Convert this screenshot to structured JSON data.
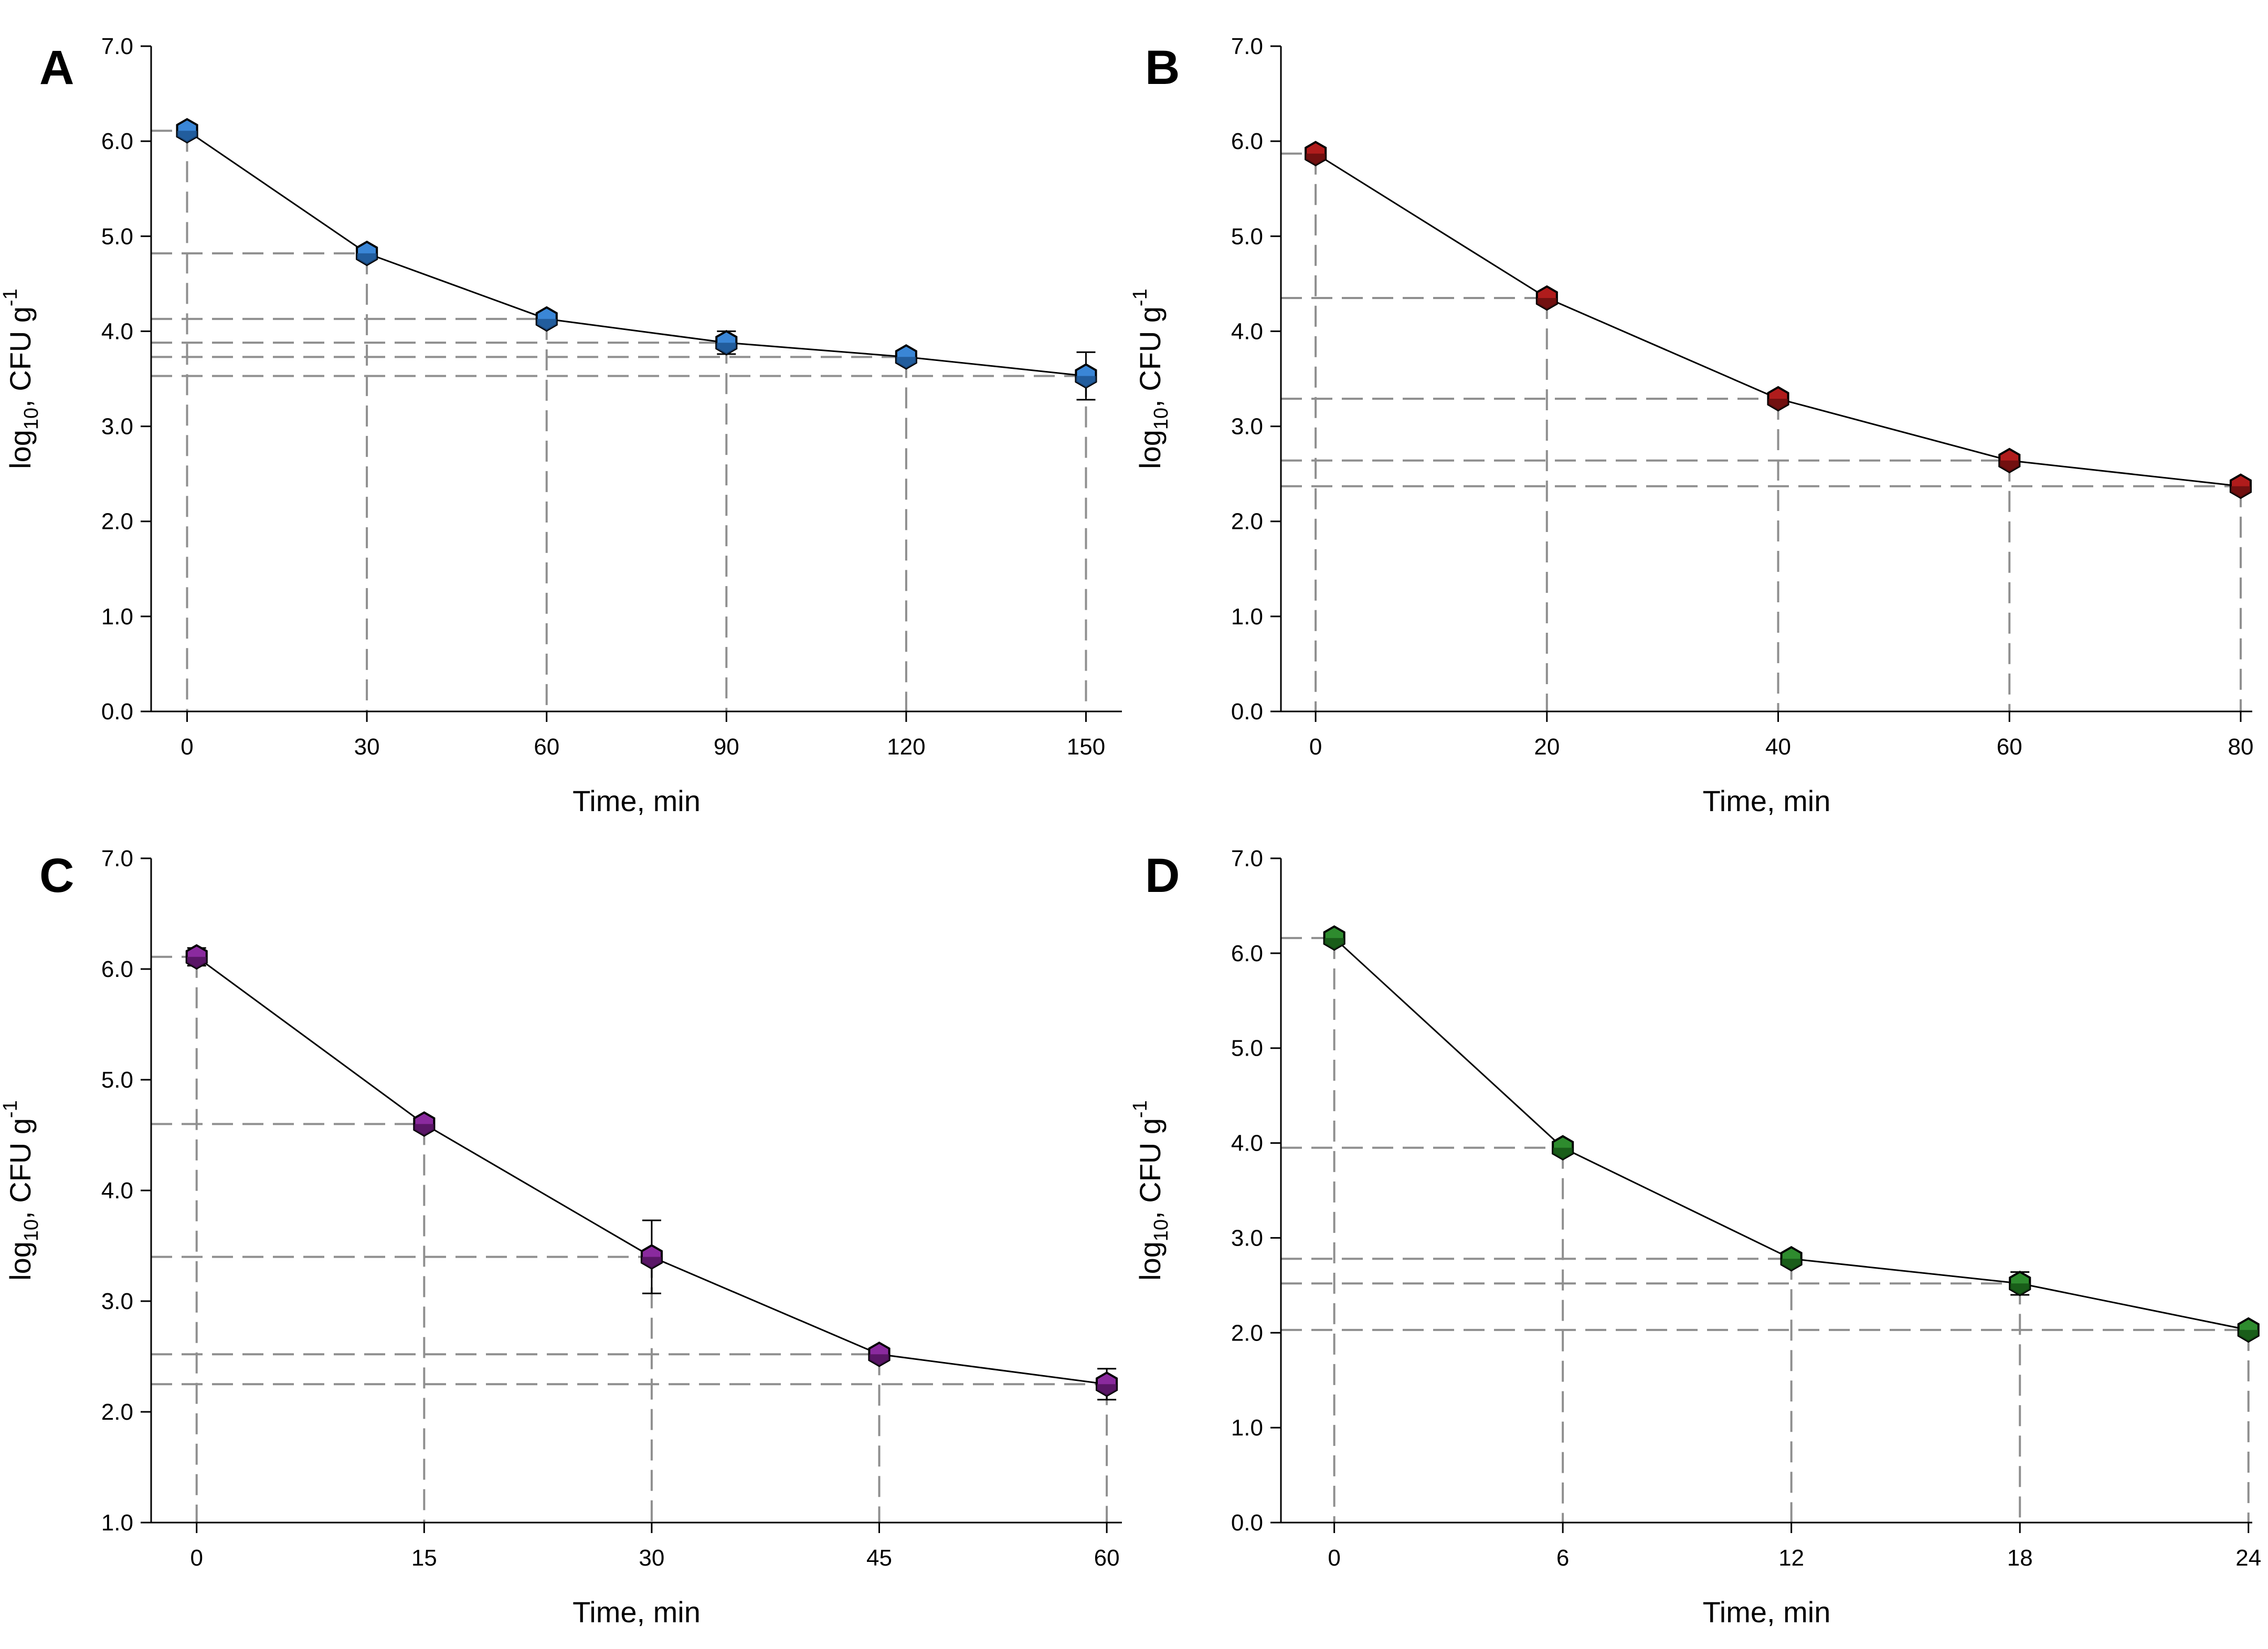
{
  "figure": {
    "colors": {
      "axis": "#000000",
      "guide": "#8f8f8f",
      "line": "#000000"
    }
  },
  "chart_data": [
    {
      "panel": "A",
      "type": "line",
      "title": "",
      "xlabel": "Time, min",
      "ylabel": {
        "main": "log",
        "sub": "10",
        "rest": ", CFU g",
        "sup": "-1"
      },
      "x": [
        0,
        30,
        60,
        90,
        120,
        150
      ],
      "values": [
        6.11,
        4.82,
        4.13,
        3.88,
        3.73,
        3.53
      ],
      "errors": [
        0.05,
        0.05,
        0.05,
        0.12,
        0.05,
        0.25
      ],
      "xlim": [
        -6,
        156
      ],
      "ylim": [
        0,
        7
      ],
      "xticks": [
        0,
        30,
        60,
        90,
        120,
        150
      ],
      "yticks": [
        0,
        1,
        2,
        3,
        4,
        5,
        6,
        7
      ],
      "xtick_labels": [
        "0",
        "30",
        "60",
        "90",
        "120",
        "150"
      ],
      "ytick_labels": [
        "0.0",
        "1.0",
        "2.0",
        "3.0",
        "4.0",
        "5.0",
        "6.0",
        "7.0"
      ],
      "marker_color": "#3a86d6",
      "marker_dark": "#1b4f8a"
    },
    {
      "panel": "B",
      "type": "line",
      "title": "",
      "xlabel": "Time, min",
      "ylabel": {
        "main": "log",
        "sub": "10",
        "rest": ", CFU g",
        "sup": "-1"
      },
      "x": [
        0,
        20,
        40,
        60,
        80
      ],
      "values": [
        5.87,
        4.35,
        3.29,
        2.64,
        2.37
      ],
      "errors": [
        0.07,
        0.05,
        0.05,
        0.05,
        0.05
      ],
      "xlim": [
        -3,
        81
      ],
      "ylim": [
        0,
        7
      ],
      "xticks": [
        0,
        20,
        40,
        60,
        80
      ],
      "yticks": [
        0,
        1,
        2,
        3,
        4,
        5,
        6,
        7
      ],
      "xtick_labels": [
        "0",
        "20",
        "40",
        "60",
        "80"
      ],
      "ytick_labels": [
        "0.0",
        "1.0",
        "2.0",
        "3.0",
        "4.0",
        "5.0",
        "6.0",
        "7.0"
      ],
      "marker_color": "#b01c1c",
      "marker_dark": "#5e0c0c"
    },
    {
      "panel": "C",
      "type": "line",
      "title": "",
      "xlabel": "Time, min",
      "ylabel": {
        "main": "log",
        "sub": "10",
        "rest": ", CFU g",
        "sup": "-1"
      },
      "x": [
        0,
        15,
        30,
        45,
        60
      ],
      "values": [
        6.11,
        4.6,
        3.4,
        2.52,
        2.25
      ],
      "errors": [
        0.08,
        0.05,
        0.33,
        0.05,
        0.14
      ],
      "xlim": [
        -3,
        61
      ],
      "ylim": [
        1,
        7
      ],
      "xticks": [
        0,
        15,
        30,
        45,
        60
      ],
      "yticks": [
        1,
        2,
        3,
        4,
        5,
        6,
        7
      ],
      "xtick_labels": [
        "0",
        "15",
        "30",
        "45",
        "60"
      ],
      "ytick_labels": [
        "1.0",
        "2.0",
        "3.0",
        "4.0",
        "5.0",
        "6.0",
        "7.0"
      ],
      "marker_color": "#8a2a9e",
      "marker_dark": "#4a1054"
    },
    {
      "panel": "D",
      "type": "line",
      "title": "",
      "xlabel": "Time, min",
      "ylabel": {
        "main": "log",
        "sub": "10",
        "rest": ", CFU g",
        "sup": "-1"
      },
      "x": [
        0,
        6,
        12,
        18,
        24
      ],
      "values": [
        6.16,
        3.95,
        2.78,
        2.52,
        2.03
      ],
      "errors": [
        0.05,
        0.05,
        0.05,
        0.12,
        0.05
      ],
      "xlim": [
        -1.4,
        24.1
      ],
      "ylim": [
        0,
        7
      ],
      "xticks": [
        0,
        6,
        12,
        18,
        24
      ],
      "yticks": [
        0,
        1,
        2,
        3,
        4,
        5,
        6,
        7
      ],
      "xtick_labels": [
        "0",
        "6",
        "12",
        "18",
        "24"
      ],
      "ytick_labels": [
        "0.0",
        "1.0",
        "2.0",
        "3.0",
        "4.0",
        "5.0",
        "6.0",
        "7.0"
      ],
      "marker_color": "#2e8b2e",
      "marker_dark": "#134d13"
    }
  ]
}
